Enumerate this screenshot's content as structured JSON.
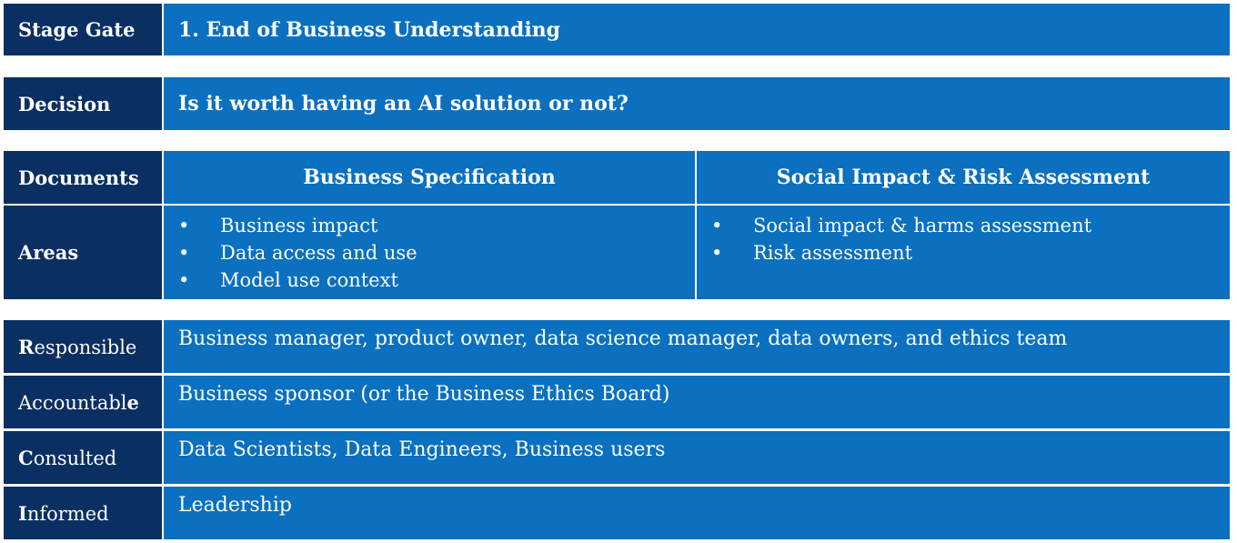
{
  "stage_gate": {
    "label": "Stage Gate",
    "value": "1. End of Business Understanding"
  },
  "decision": {
    "label": "Decision",
    "value": "Is it worth having an AI solution or not?"
  },
  "documents": {
    "label": "Documents",
    "columns": [
      "Business Specification",
      "Social Impact & Risk Assessment"
    ]
  },
  "areas": {
    "label": "Areas",
    "business_specification": [
      "Business impact",
      "Data access and use",
      "Model use context"
    ],
    "social_impact": [
      "Social impact & harms assessment",
      "Risk assessment"
    ]
  },
  "raci": {
    "responsible": {
      "label_first": "R",
      "label_rest": "esponsible",
      "value": "Business manager, product owner, data science manager, data owners, and ethics team"
    },
    "accountable": {
      "label_main": "Accountabl",
      "label_last": "e",
      "value": "Business sponsor (or the Business Ethics Board)"
    },
    "consulted": {
      "label_first": "C",
      "label_rest": "onsulted",
      "value": "Data Scientists, Data Engineers, Business users"
    },
    "informed": {
      "label_first": "I",
      "label_rest": "nformed",
      "value": "Leadership"
    }
  },
  "bullet_glyph": "•"
}
